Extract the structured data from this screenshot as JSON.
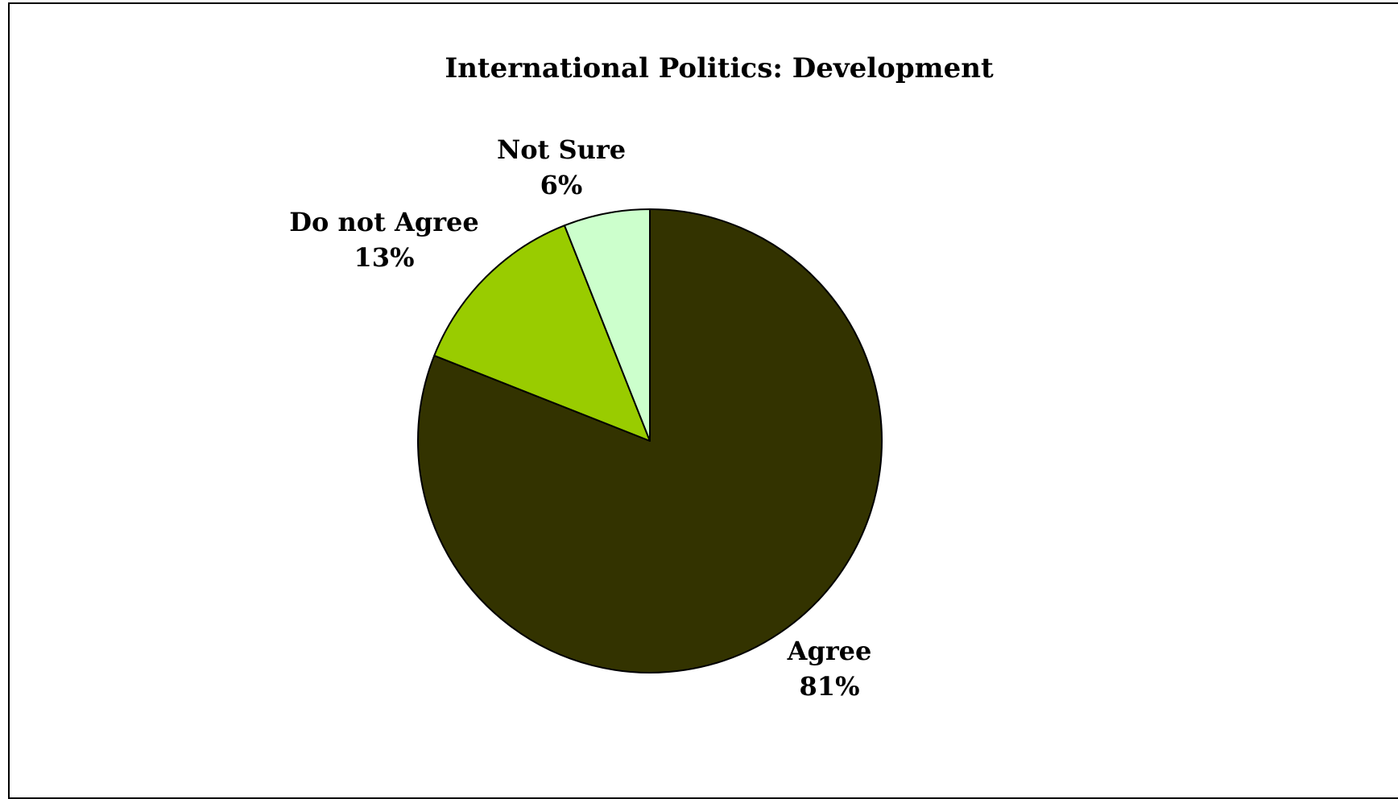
{
  "chart_data": {
    "type": "pie",
    "title": "International Politics: Development",
    "legend": "none",
    "slices": [
      {
        "label": "Agree",
        "value": 81,
        "value_label": "81%",
        "color": "#333300"
      },
      {
        "label": "Do not Agree",
        "value": 13,
        "value_label": "13%",
        "color": "#99CC00"
      },
      {
        "label": "Not Sure",
        "value": 6,
        "value_label": "6%",
        "color": "#CCFFCC"
      }
    ],
    "start": "12 o'clock",
    "direction": "clockwise",
    "edge_color": "#000000"
  }
}
